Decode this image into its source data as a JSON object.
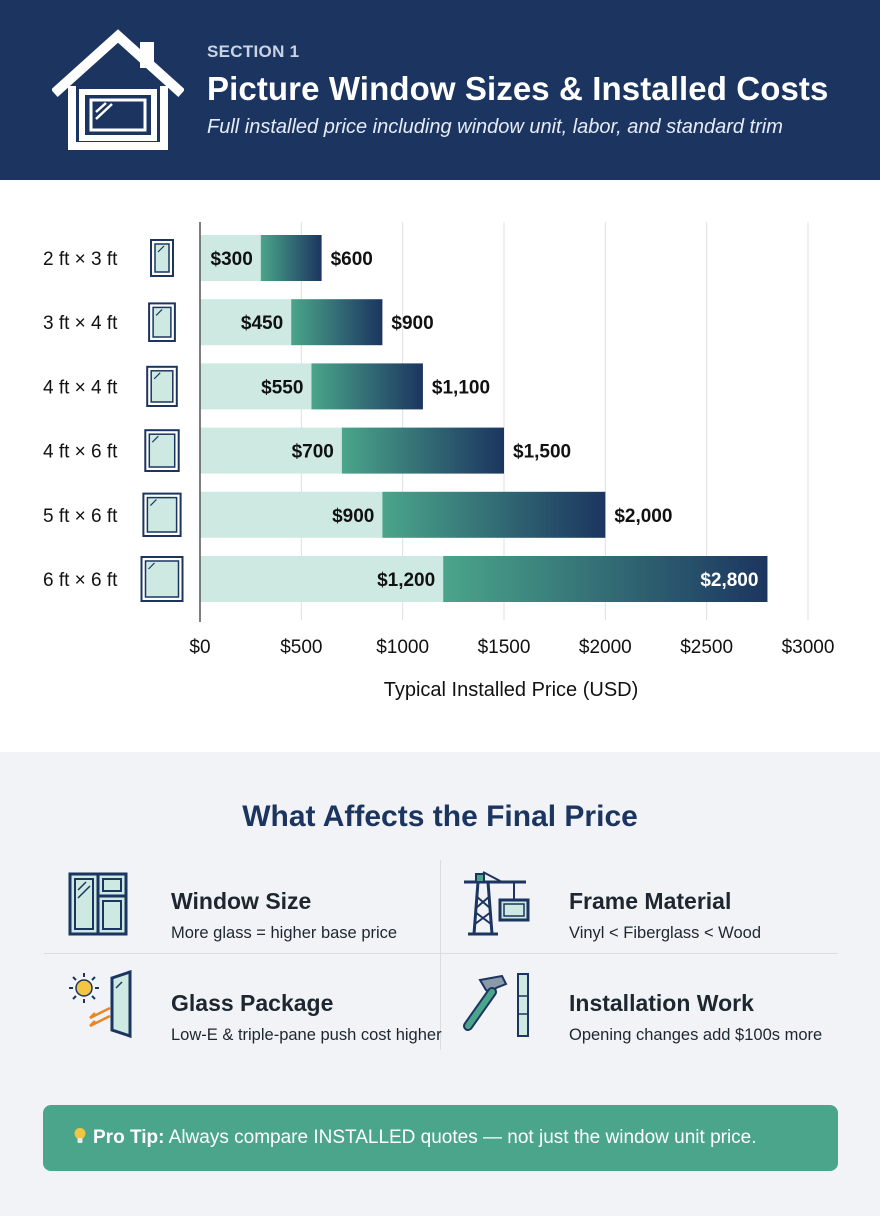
{
  "header": {
    "section_label": "SECTION 1",
    "title": "Picture Window Sizes & Installed Costs",
    "subtitle": "Full installed price including window unit, labor, and standard trim"
  },
  "chart_data": {
    "type": "bar",
    "orientation": "horizontal",
    "stacked_range": true,
    "categories": [
      "2 ft × 3 ft",
      "3 ft × 4 ft",
      "4 ft × 4 ft",
      "4 ft × 6 ft",
      "5 ft × 6 ft",
      "6 ft × 6 ft"
    ],
    "low": [
      300,
      450,
      550,
      700,
      900,
      1200
    ],
    "high": [
      600,
      900,
      1100,
      1500,
      2000,
      2800
    ],
    "low_labels": [
      "$300",
      "$450",
      "$550",
      "$700",
      "$900",
      "$1,200"
    ],
    "high_labels": [
      "$600",
      "$900",
      "$1,100",
      "$1,500",
      "$2,000",
      "$2,800"
    ],
    "xlabel": "Typical Installed Price (USD)",
    "xlim": [
      0,
      3000
    ],
    "xticks": [
      0,
      500,
      1000,
      1500,
      2000,
      2500,
      3000
    ],
    "xtick_labels": [
      "$0",
      "$500",
      "$1000",
      "$1500",
      "$2000",
      "$2500",
      "$3000"
    ],
    "grid": true,
    "colors": {
      "low_segment": "#cde9e2",
      "high_gradient_start": "#4aa58a",
      "high_gradient_end": "#1c3560",
      "icon_stroke": "#1c3560",
      "icon_fill": "#cde9e2"
    }
  },
  "factors": {
    "title": "What Affects the Final Price",
    "items": [
      {
        "icon": "window-grid-icon",
        "name": "Window Size",
        "desc": "More glass = higher base price"
      },
      {
        "icon": "crane-icon",
        "name": "Frame Material",
        "desc": "Vinyl < Fiberglass < Wood"
      },
      {
        "icon": "sun-glass-icon",
        "name": "Glass Package",
        "desc": "Low-E & triple-pane push cost higher"
      },
      {
        "icon": "hammer-icon",
        "name": "Installation Work",
        "desc": "Opening changes add $100s more"
      }
    ]
  },
  "tip": {
    "label": "Pro Tip:",
    "text": " Always compare INSTALLED quotes — not just the window unit price."
  },
  "colors": {
    "header_bg": "#1c3560",
    "accent_green": "#4aa58a",
    "factors_bg": "#f1f3f6"
  }
}
